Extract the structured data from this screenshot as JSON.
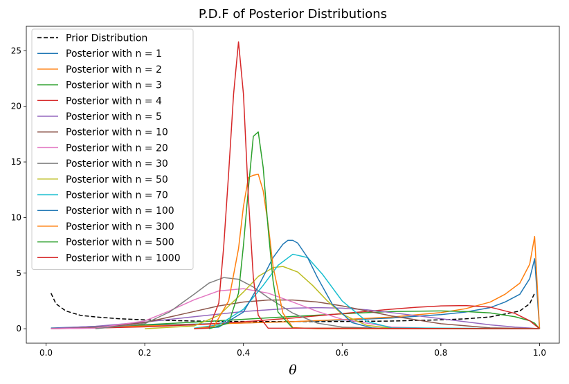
{
  "chart_data": {
    "type": "line",
    "title": "P.D.F of Posterior Distributions",
    "xlabel": "θ",
    "ylabel": "",
    "xlim": [
      -0.04,
      1.04
    ],
    "ylim": [
      -1.3,
      27.2
    ],
    "xticks": [
      0.0,
      0.2,
      0.4,
      0.6,
      0.8,
      1.0
    ],
    "xtick_labels": [
      "0.0",
      "0.2",
      "0.4",
      "0.6",
      "0.8",
      "1.0"
    ],
    "yticks": [
      0,
      5,
      10,
      15,
      20,
      25
    ],
    "ytick_labels": [
      "0",
      "5",
      "10",
      "15",
      "20",
      "25"
    ],
    "grid": false,
    "legend_position": "top-left",
    "series": [
      {
        "name": "Prior Distribution",
        "color": "#000000",
        "dashed": true,
        "x": [
          0.01,
          0.02,
          0.04,
          0.07,
          0.1,
          0.15,
          0.2,
          0.3,
          0.4,
          0.5,
          0.6,
          0.7,
          0.8,
          0.85,
          0.9,
          0.93,
          0.96,
          0.98,
          0.99
        ],
        "y": [
          3.2,
          2.25,
          1.6,
          1.2,
          1.06,
          0.89,
          0.8,
          0.69,
          0.65,
          0.64,
          0.65,
          0.69,
          0.8,
          0.89,
          1.06,
          1.32,
          1.6,
          2.25,
          3.2
        ]
      },
      {
        "name": "Posterior with n = 1",
        "color": "#1f77b4",
        "dashed": false,
        "x": [
          0.01,
          0.1,
          0.2,
          0.3,
          0.4,
          0.5,
          0.6,
          0.7,
          0.8,
          0.85,
          0.9,
          0.93,
          0.96,
          0.98,
          0.99,
          1.0
        ],
        "y": [
          0.06,
          0.21,
          0.32,
          0.41,
          0.52,
          0.64,
          0.78,
          0.96,
          1.27,
          1.5,
          1.9,
          2.4,
          3.1,
          4.5,
          6.3,
          0.0
        ]
      },
      {
        "name": "Posterior with n = 2",
        "color": "#ff7f0e",
        "dashed": false,
        "x": [
          0.01,
          0.1,
          0.2,
          0.3,
          0.4,
          0.5,
          0.6,
          0.7,
          0.8,
          0.85,
          0.9,
          0.93,
          0.96,
          0.98,
          0.99,
          1.0
        ],
        "y": [
          0.02,
          0.13,
          0.25,
          0.37,
          0.51,
          0.64,
          0.82,
          1.05,
          1.45,
          1.8,
          2.4,
          3.1,
          4.1,
          5.8,
          8.3,
          0.0
        ]
      },
      {
        "name": "Posterior with n = 3",
        "color": "#2ca02c",
        "dashed": false,
        "x": [
          0.01,
          0.1,
          0.2,
          0.3,
          0.4,
          0.5,
          0.6,
          0.7,
          0.8,
          0.85,
          0.9,
          0.95,
          0.98,
          0.99,
          1.0
        ],
        "y": [
          0.02,
          0.16,
          0.36,
          0.59,
          0.85,
          1.1,
          1.34,
          1.55,
          1.6,
          1.55,
          1.42,
          1.08,
          0.72,
          0.5,
          0.0
        ]
      },
      {
        "name": "Posterior with n = 4",
        "color": "#d62728",
        "dashed": false,
        "x": [
          0.01,
          0.1,
          0.2,
          0.3,
          0.4,
          0.5,
          0.6,
          0.7,
          0.75,
          0.8,
          0.85,
          0.9,
          0.95,
          0.98,
          1.0
        ],
        "y": [
          0.0,
          0.06,
          0.17,
          0.35,
          0.62,
          0.96,
          1.36,
          1.76,
          1.93,
          2.05,
          2.08,
          1.94,
          1.38,
          0.72,
          0.0
        ]
      },
      {
        "name": "Posterior with n = 5",
        "color": "#9467bd",
        "dashed": false,
        "x": [
          0.01,
          0.1,
          0.2,
          0.3,
          0.4,
          0.5,
          0.55,
          0.6,
          0.65,
          0.7,
          0.8,
          0.9,
          0.95,
          1.0
        ],
        "y": [
          0.02,
          0.22,
          0.6,
          1.08,
          1.55,
          1.85,
          1.9,
          1.85,
          1.7,
          1.45,
          0.9,
          0.35,
          0.15,
          0.0
        ]
      },
      {
        "name": "Posterior with n = 10",
        "color": "#8c564b",
        "dashed": false,
        "x": [
          0.01,
          0.1,
          0.2,
          0.3,
          0.35,
          0.4,
          0.45,
          0.5,
          0.55,
          0.6,
          0.7,
          0.8,
          0.9,
          1.0
        ],
        "y": [
          0.0,
          0.1,
          0.55,
          1.55,
          2.05,
          2.4,
          2.58,
          2.58,
          2.4,
          2.05,
          1.15,
          0.45,
          0.08,
          0.0
        ]
      },
      {
        "name": "Posterior with n = 20",
        "color": "#e377c2",
        "dashed": false,
        "x": [
          0.01,
          0.1,
          0.2,
          0.25,
          0.3,
          0.35,
          0.4,
          0.45,
          0.5,
          0.55,
          0.6,
          0.7,
          0.8,
          1.0
        ],
        "y": [
          0.0,
          0.05,
          0.7,
          1.6,
          2.6,
          3.4,
          3.6,
          3.2,
          2.4,
          1.55,
          0.85,
          0.15,
          0.01,
          0.0
        ]
      },
      {
        "name": "Posterior with n = 30",
        "color": "#7f7f7f",
        "dashed": false,
        "x": [
          0.1,
          0.2,
          0.25,
          0.3,
          0.33,
          0.36,
          0.39,
          0.42,
          0.45,
          0.5,
          0.55,
          0.6,
          0.7,
          1.0
        ],
        "y": [
          0.0,
          0.45,
          1.5,
          3.1,
          4.1,
          4.6,
          4.45,
          3.75,
          2.8,
          1.4,
          0.5,
          0.15,
          0.0,
          0.0
        ]
      },
      {
        "name": "Posterior with n = 50",
        "color": "#bcbd22",
        "dashed": false,
        "x": [
          0.2,
          0.3,
          0.35,
          0.4,
          0.43,
          0.46,
          0.48,
          0.51,
          0.54,
          0.57,
          0.6,
          0.65,
          0.7,
          1.0
        ],
        "y": [
          0.0,
          0.25,
          1.2,
          3.3,
          4.7,
          5.5,
          5.6,
          5.1,
          3.9,
          2.5,
          1.3,
          0.3,
          0.05,
          0.0
        ]
      },
      {
        "name": "Posterior with n = 70",
        "color": "#17becf",
        "dashed": false,
        "x": [
          0.3,
          0.35,
          0.4,
          0.44,
          0.47,
          0.5,
          0.53,
          0.56,
          0.6,
          0.65,
          0.7,
          1.0
        ],
        "y": [
          0.05,
          0.35,
          1.75,
          3.9,
          5.7,
          6.7,
          6.4,
          4.9,
          2.5,
          0.65,
          0.08,
          0.0
        ]
      },
      {
        "name": "Posterior with n = 100",
        "color": "#1f77b4",
        "dashed": false,
        "x": [
          0.3,
          0.35,
          0.4,
          0.43,
          0.46,
          0.48,
          0.49,
          0.5,
          0.51,
          0.53,
          0.55,
          0.58,
          0.62,
          0.66,
          0.7,
          1.0
        ],
        "y": [
          0.0,
          0.15,
          1.5,
          3.8,
          6.4,
          7.6,
          7.95,
          7.95,
          7.7,
          6.4,
          4.6,
          2.2,
          0.55,
          0.08,
          0.0,
          0.0
        ]
      },
      {
        "name": "Posterior with n = 300",
        "color": "#ff7f0e",
        "dashed": false,
        "x": [
          0.3,
          0.34,
          0.37,
          0.39,
          0.4,
          0.41,
          0.42,
          0.43,
          0.44,
          0.45,
          0.46,
          0.48,
          0.5,
          0.55,
          1.0
        ],
        "y": [
          0.0,
          0.2,
          2.5,
          7.2,
          11.0,
          13.6,
          13.8,
          13.9,
          12.4,
          9.4,
          5.6,
          1.4,
          0.1,
          0.0,
          0.0
        ]
      },
      {
        "name": "Posterior with n = 500",
        "color": "#2ca02c",
        "dashed": false,
        "x": [
          0.33,
          0.37,
          0.39,
          0.4,
          0.41,
          0.42,
          0.43,
          0.44,
          0.45,
          0.46,
          0.47,
          0.5,
          1.0
        ],
        "y": [
          0.0,
          0.5,
          3.2,
          7.5,
          12.6,
          17.3,
          17.7,
          14.5,
          9.0,
          4.3,
          1.5,
          0.05,
          0.0
        ]
      },
      {
        "name": "Posterior with n = 1000",
        "color": "#d62728",
        "dashed": false,
        "x": [
          0.3,
          0.33,
          0.35,
          0.36,
          0.37,
          0.38,
          0.39,
          0.4,
          0.41,
          0.42,
          0.43,
          0.45,
          1.0
        ],
        "y": [
          0.0,
          0.05,
          2.3,
          7.4,
          14.0,
          21.1,
          25.8,
          21.1,
          11.8,
          4.6,
          1.2,
          0.05,
          0.0
        ]
      }
    ]
  }
}
